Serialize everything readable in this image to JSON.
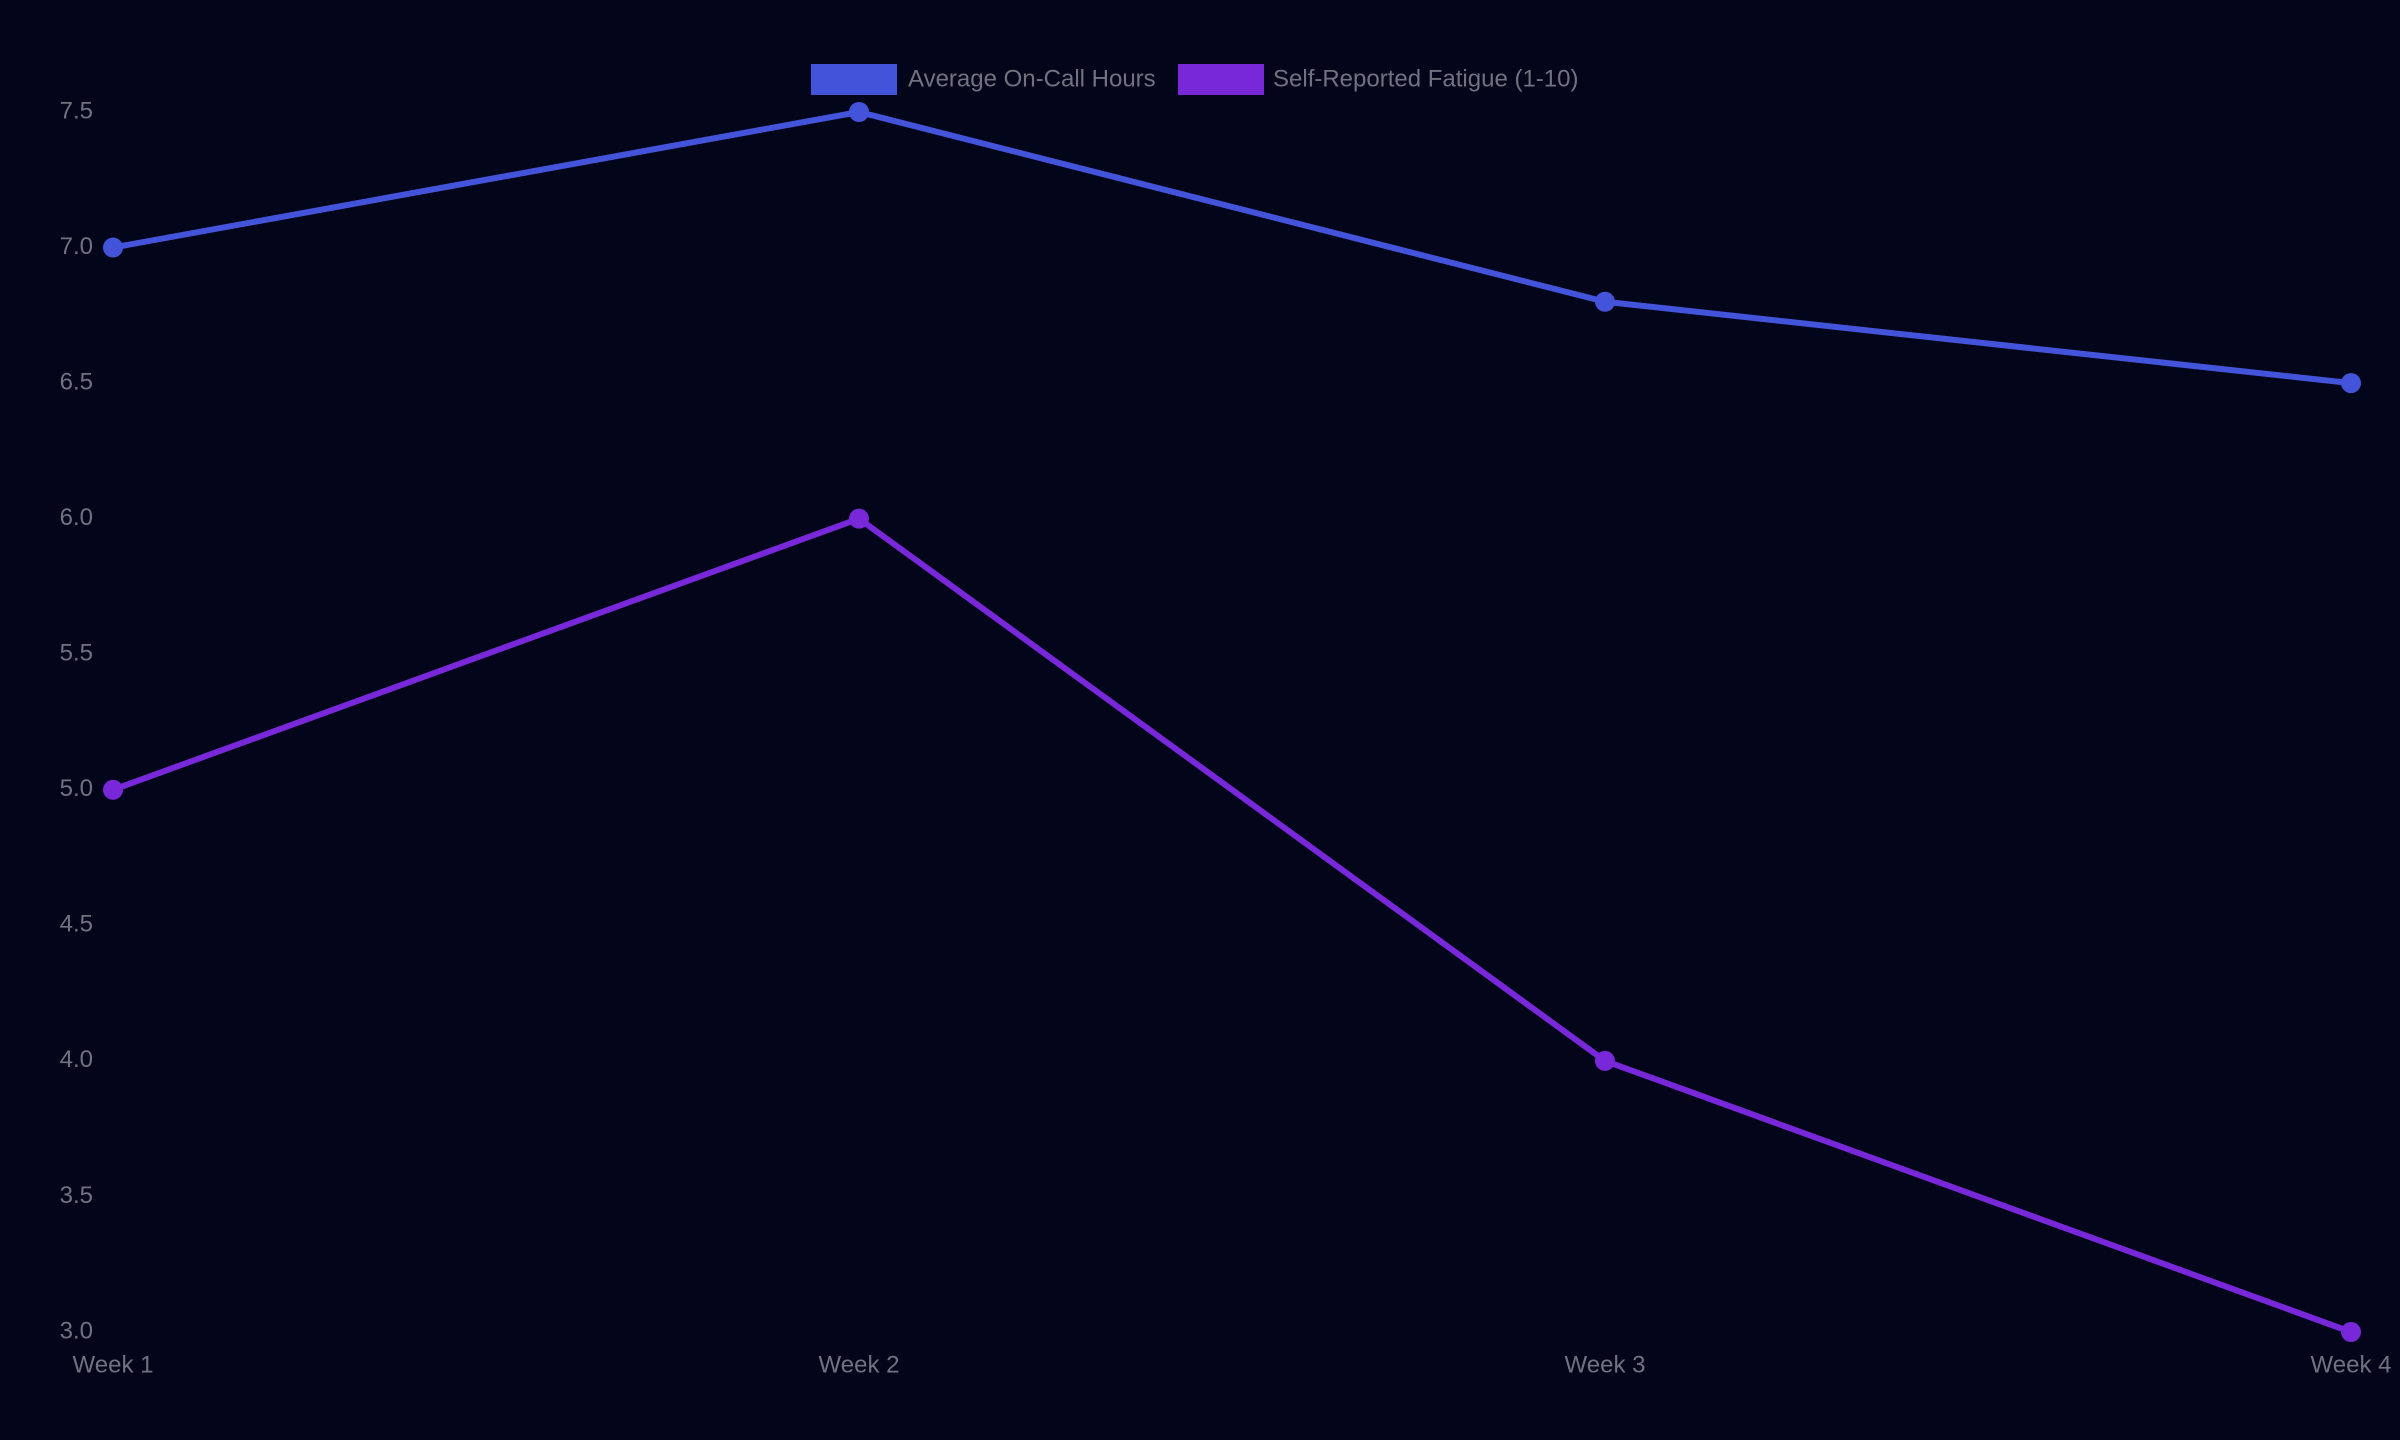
{
  "chart_data": {
    "type": "line",
    "categories": [
      "Week 1",
      "Week 2",
      "Week 3",
      "Week 4"
    ],
    "series": [
      {
        "name": "Average On-Call Hours",
        "color": "#4354db",
        "values": [
          7.0,
          7.5,
          6.8,
          6.5
        ]
      },
      {
        "name": "Self-Reported Fatigue (1-10)",
        "color": "#7828d8",
        "values": [
          5.0,
          6.0,
          4.0,
          3.0
        ]
      }
    ],
    "ylim": [
      3.0,
      7.5
    ],
    "yticks": [
      {
        "value": 3,
        "label": "3.0"
      },
      3.5,
      {
        "value": 4,
        "label": "4.0"
      },
      4.5,
      {
        "value": 5,
        "label": "5.0"
      },
      5.5,
      {
        "value": 6,
        "label": "6.0"
      },
      6.5,
      {
        "value": 7,
        "label": "7.0"
      },
      7.5
    ],
    "grid": false,
    "legend": "top"
  }
}
